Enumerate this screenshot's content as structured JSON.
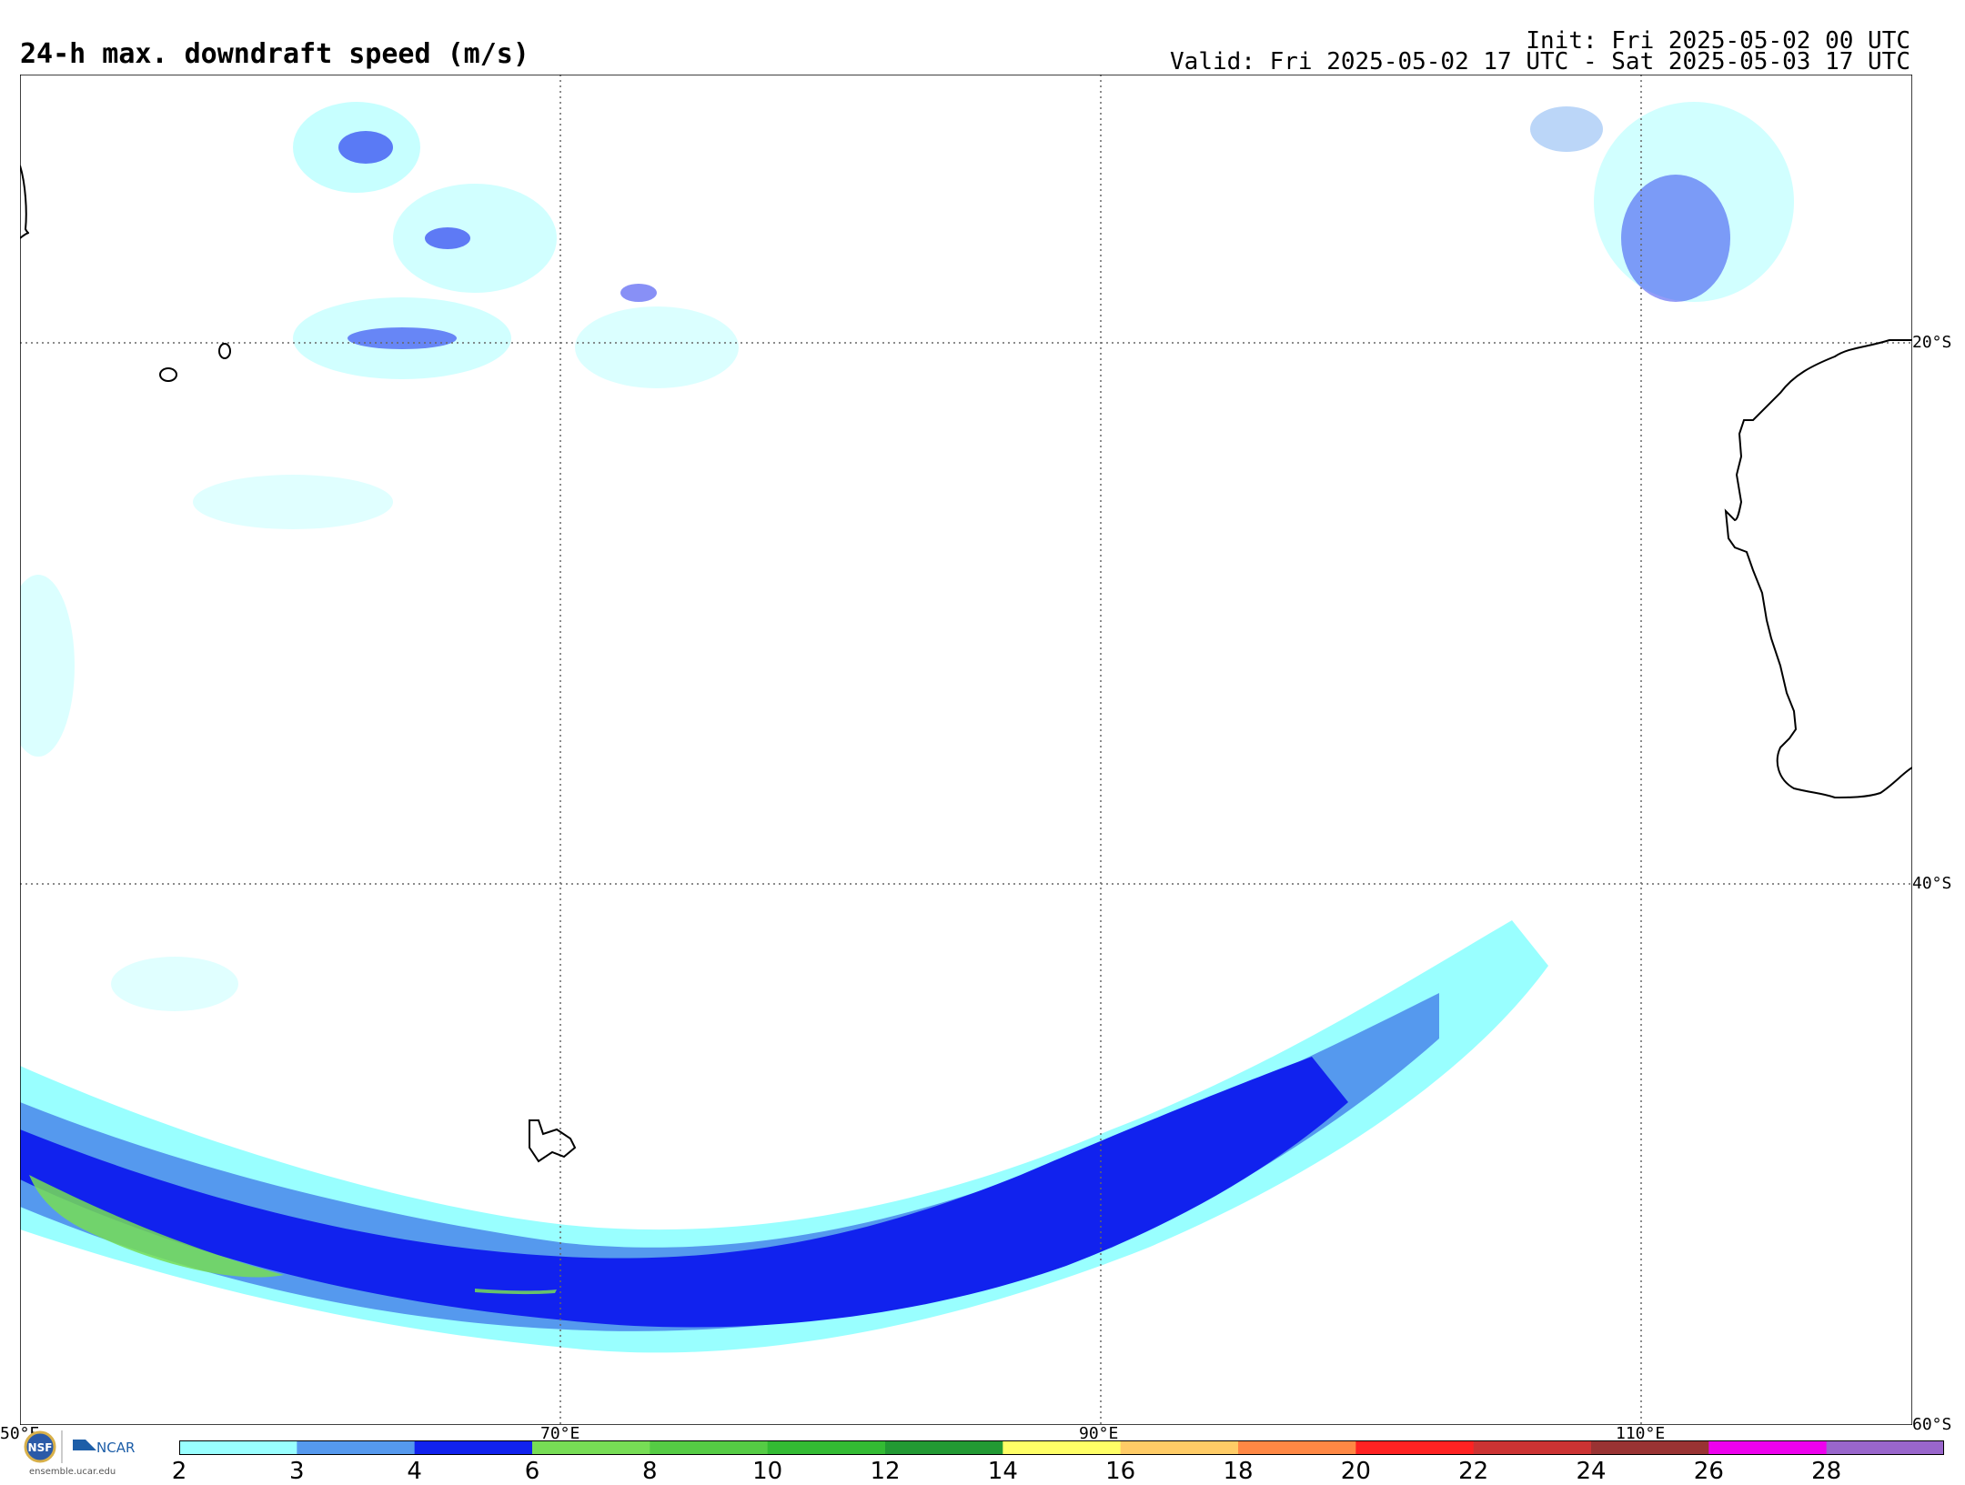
{
  "header": {
    "title": "24-h max. downdraft speed (m/s)",
    "init": "Init: Fri 2025-05-02 00 UTC",
    "valid": "Valid: Fri 2025-05-02 17 UTC - Sat 2025-05-03 17 UTC"
  },
  "map": {
    "lon_labels": [
      "50°E",
      "70°E",
      "90°E",
      "110°E"
    ],
    "lat_labels": [
      "20°S",
      "40°S",
      "60°S"
    ],
    "extent": {
      "lon_min": 50,
      "lon_max": 120,
      "lat_max": -10,
      "lat_min": -60
    },
    "gridlines": "dotted",
    "features": [
      "Mauritius",
      "Réunion",
      "Kerguelen Islands",
      "Western Australia coastline",
      "Madagascar coast"
    ]
  },
  "colorbar": {
    "ticks": [
      "2",
      "3",
      "4",
      "6",
      "8",
      "10",
      "12",
      "14",
      "16",
      "18",
      "20",
      "22",
      "24",
      "26",
      "28"
    ],
    "colors": [
      "#99ffff",
      "#5599ee",
      "#1122ee",
      "#77dd55",
      "#55cc44",
      "#33bb33",
      "#229933",
      "#ffff66",
      "#ffcc66",
      "#ff8844",
      "#ff2222",
      "#cc3333",
      "#993333",
      "#ee00ee",
      "#9966cc"
    ]
  },
  "footer": {
    "nsf": "NSF",
    "ncar": "NCAR",
    "site": "ensemble.ucar.edu"
  }
}
